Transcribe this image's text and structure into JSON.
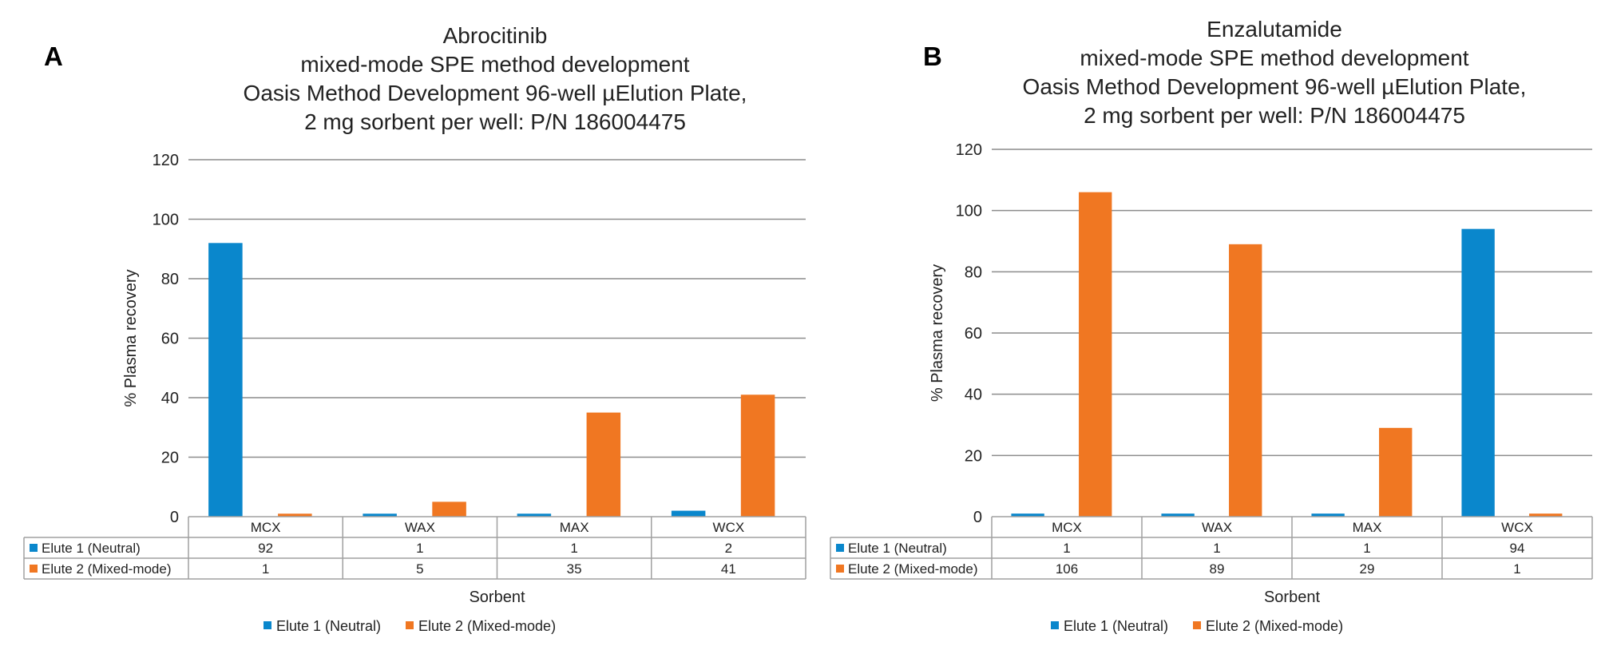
{
  "colors": {
    "elute1": "#0a87cc",
    "elute2": "#f07722",
    "grid": "#8c8c8c",
    "table": "#a0a0a0"
  },
  "chart_data": [
    {
      "type": "bar",
      "panel_label": "A",
      "title": [
        "Abrocitinib",
        "mixed-mode SPE method development",
        "Oasis Method Development 96-well µElution Plate,",
        "2 mg sorbent per well: P/N 186004475"
      ],
      "categories": [
        "MCX",
        "WAX",
        "MAX",
        "WCX"
      ],
      "series": [
        {
          "name": "Elute 1 (Neutral)",
          "values": [
            92,
            1,
            1,
            2
          ]
        },
        {
          "name": "Elute 2 (Mixed-mode)",
          "values": [
            1,
            5,
            35,
            41
          ]
        }
      ],
      "table_values": [
        [
          "92",
          "1",
          "1",
          "2"
        ],
        [
          "1",
          "5",
          "35",
          "41"
        ]
      ],
      "ylabel": "% Plasma recovery",
      "xlabel": "Sorbent",
      "ylim": [
        0,
        120
      ],
      "yticks": [
        "0",
        "20",
        "40",
        "60",
        "80",
        "100",
        "120"
      ],
      "legend_position": "bottom"
    },
    {
      "type": "bar",
      "panel_label": "B",
      "title": [
        "Enzalutamide",
        "mixed-mode SPE method development",
        "Oasis Method Development 96-well µElution Plate,",
        "2 mg sorbent per well: P/N 186004475"
      ],
      "categories": [
        "MCX",
        "WAX",
        "MAX",
        "WCX"
      ],
      "series": [
        {
          "name": "Elute 1 (Neutral)",
          "values": [
            1,
            1,
            1,
            94
          ]
        },
        {
          "name": "Elute 2 (Mixed-mode)",
          "values": [
            106,
            89,
            29,
            1
          ]
        }
      ],
      "table_values": [
        [
          "1",
          "1",
          "1",
          "94"
        ],
        [
          "106",
          "89",
          "29",
          "1"
        ]
      ],
      "ylabel": "% Plasma recovery",
      "xlabel": "Sorbent",
      "ylim": [
        0,
        120
      ],
      "yticks": [
        "0",
        "20",
        "40",
        "60",
        "80",
        "100",
        "120"
      ],
      "legend_position": "bottom"
    }
  ]
}
